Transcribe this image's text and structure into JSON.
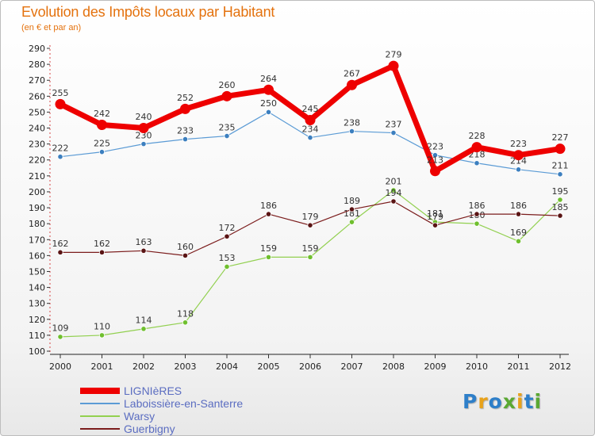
{
  "header": {
    "title": "Evolution des Impôts locaux par Habitant",
    "subtitle": "(en € et par an)"
  },
  "brand": {
    "text": "Proxiti",
    "letters": [
      {
        "ch": "P",
        "color": "#2e7fc9"
      },
      {
        "ch": "r",
        "color": "#e8a21b"
      },
      {
        "ch": "o",
        "color": "#2e7fc9"
      },
      {
        "ch": "x",
        "color": "#5aa832"
      },
      {
        "ch": "i",
        "color": "#e8a21b"
      },
      {
        "ch": "t",
        "color": "#2e7fc9"
      },
      {
        "ch": "i",
        "color": "#5aa832"
      }
    ]
  },
  "chart_data": {
    "type": "line",
    "x": [
      "2000",
      "2001",
      "2002",
      "2003",
      "2004",
      "2005",
      "2006",
      "2007",
      "2008",
      "2009",
      "2010",
      "2011",
      "2012"
    ],
    "ylim": [
      100,
      290
    ],
    "yticks": [
      100,
      110,
      120,
      130,
      140,
      150,
      160,
      170,
      180,
      190,
      200,
      210,
      220,
      230,
      240,
      250,
      260,
      270,
      280,
      290
    ],
    "grid": false,
    "legend_position": "bottom-left",
    "series": [
      {
        "name": "Laboissière-en-Santerre",
        "color": "#5b9bd5",
        "point_color": "#3c7fbf",
        "line_width": 1.2,
        "point_radius": 3.2,
        "values": [
          222,
          225,
          230,
          233,
          235,
          250,
          234,
          238,
          237,
          223,
          218,
          214,
          211
        ]
      },
      {
        "name": "Warsy",
        "color": "#92d050",
        "point_color": "#6fbf2e",
        "line_width": 1.2,
        "point_radius": 3.2,
        "values": [
          109,
          110,
          114,
          118,
          153,
          159,
          159,
          181,
          201,
          181,
          180,
          169,
          195
        ]
      },
      {
        "name": "Guerbigny",
        "color": "#7b1c1c",
        "point_color": "#5a1414",
        "line_width": 1.2,
        "point_radius": 3.2,
        "values": [
          162,
          162,
          163,
          160,
          172,
          186,
          179,
          189,
          194,
          179,
          186,
          186,
          185
        ]
      },
      {
        "name": "LIGNIèRES",
        "color": "#ee0000",
        "point_color": "#ee0000",
        "line_width": 7,
        "point_radius": 6.5,
        "values": [
          255,
          242,
          240,
          252,
          260,
          264,
          245,
          267,
          279,
          213,
          228,
          223,
          227
        ]
      }
    ]
  }
}
